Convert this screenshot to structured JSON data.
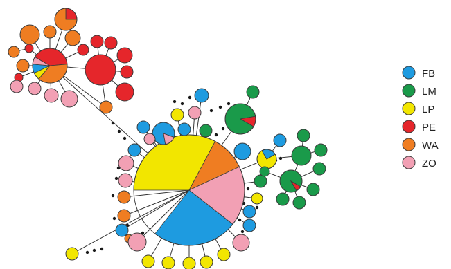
{
  "legend": {
    "items": [
      {
        "code": "FB",
        "label": "FB",
        "color": "#1e9be0"
      },
      {
        "code": "LM",
        "label": "LM",
        "color": "#1a9a4a"
      },
      {
        "code": "LP",
        "label": "LP",
        "color": "#f2e600"
      },
      {
        "code": "PE",
        "label": "PE",
        "color": "#e5262b"
      },
      {
        "code": "WA",
        "label": "WA",
        "color": "#ef7d22"
      },
      {
        "code": "ZO",
        "label": "ZO",
        "color": "#f2a0b4"
      }
    ]
  },
  "style": {
    "stroke": "#3a3a3a",
    "edge": "#333333"
  }
}
